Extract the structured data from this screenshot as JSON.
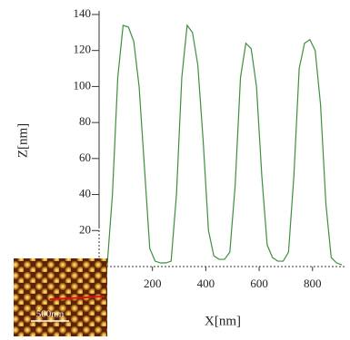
{
  "chart_data": {
    "type": "line",
    "xlabel": "X[nm]",
    "ylabel": "Z[nm]",
    "x": [
      30,
      50,
      70,
      90,
      110,
      130,
      150,
      170,
      190,
      210,
      230,
      250,
      270,
      290,
      310,
      330,
      350,
      370,
      390,
      410,
      430,
      450,
      470,
      490,
      510,
      530,
      550,
      570,
      590,
      610,
      630,
      650,
      670,
      690,
      710,
      730,
      750,
      770,
      790,
      810,
      830,
      850,
      870,
      890,
      910
    ],
    "series": [
      {
        "color": "#3f8f3f",
        "values": [
          0,
          40,
          105,
          134,
          133,
          125,
          100,
          55,
          10,
          3,
          2,
          2,
          3,
          40,
          105,
          134,
          130,
          112,
          70,
          20,
          6,
          4,
          4,
          8,
          45,
          105,
          124,
          121,
          100,
          50,
          12,
          5,
          3,
          3,
          8,
          50,
          110,
          124,
          126,
          120,
          90,
          35,
          5,
          2,
          1
        ]
      }
    ],
    "xlim": [
      0,
      920
    ],
    "xticks": [
      200,
      400,
      600,
      800
    ],
    "ylim": [
      0,
      142
    ],
    "yticks": [
      20,
      40,
      60,
      80,
      100,
      120,
      140
    ],
    "inset_label": "500nm"
  }
}
